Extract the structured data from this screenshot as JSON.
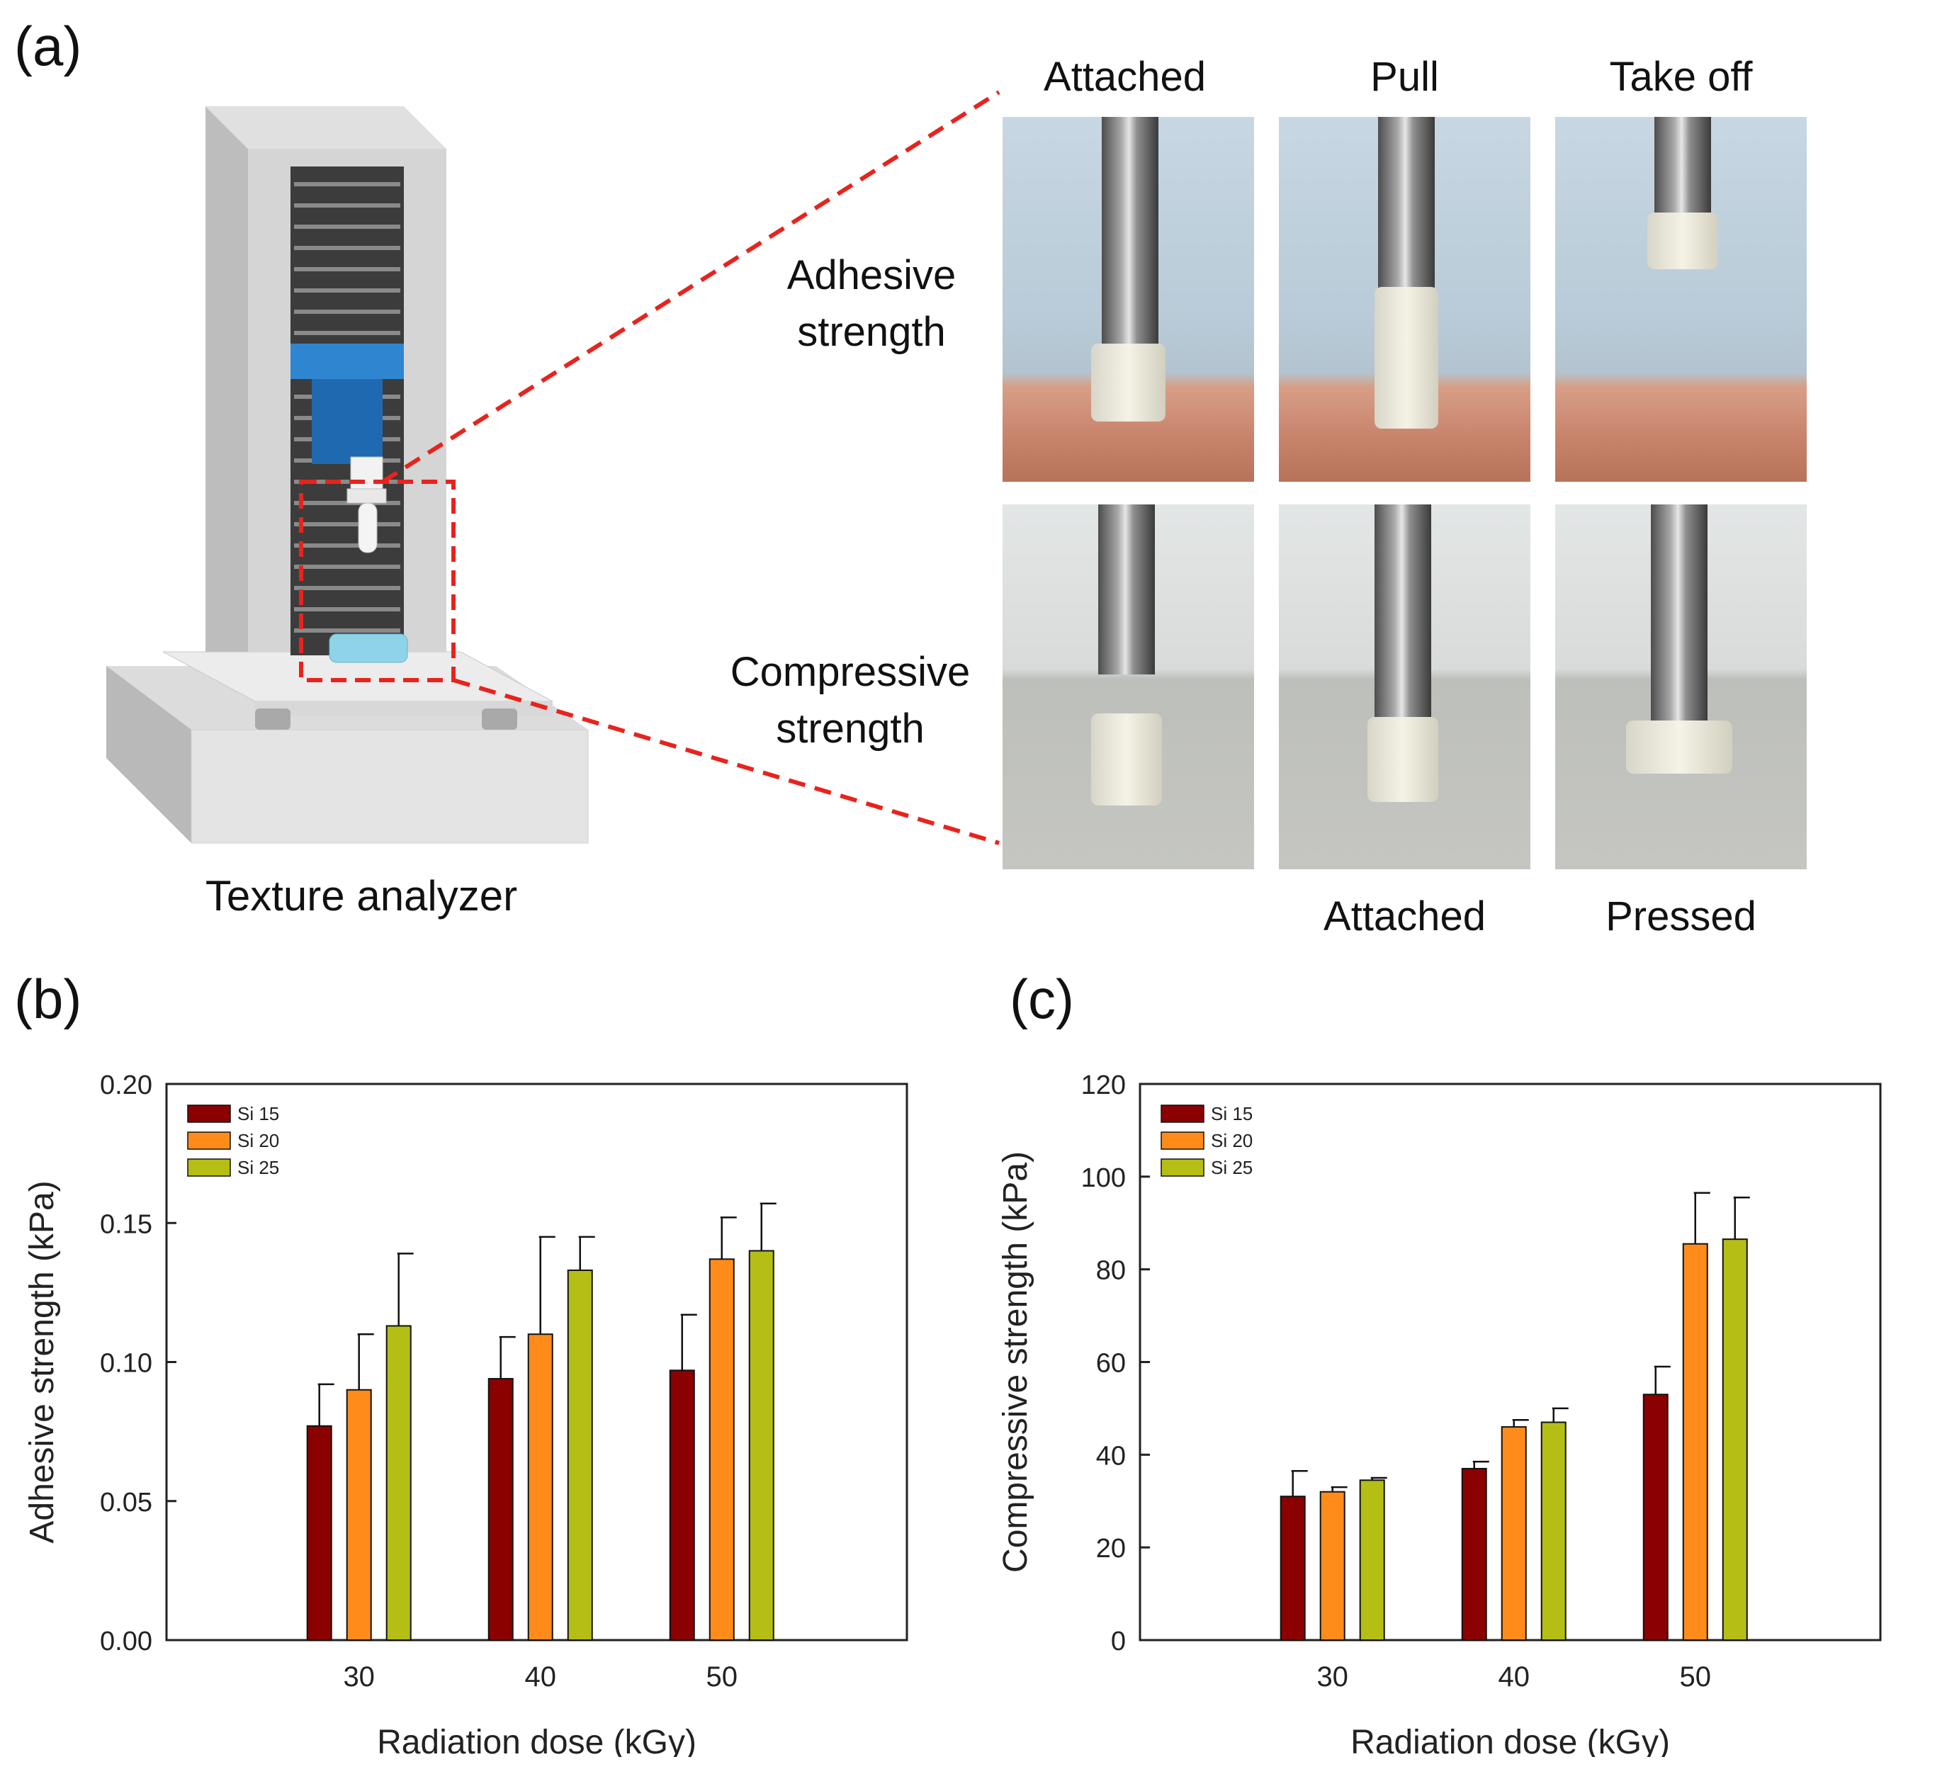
{
  "panel_a": {
    "letter": "(a)",
    "instrument_label": "Texture analyzer",
    "columns": [
      "Attached",
      "Pull",
      "Take off"
    ],
    "row_labels": [
      {
        "line1": "Adhesive",
        "line2": "strength"
      },
      {
        "line1": "Compressive",
        "line2": "strength"
      }
    ],
    "bottom_labels": [
      "Attached",
      "Pressed"
    ]
  },
  "colors": {
    "si15": "#8b0000",
    "si20": "#ff8c1a",
    "si25": "#b5be14",
    "dash": "#e8231e",
    "blue": "#2878bf"
  },
  "panel_b": {
    "letter": "(b)"
  },
  "panel_c": {
    "letter": "(c)"
  },
  "chart_data": [
    {
      "type": "bar",
      "panel": "(b)",
      "categories": [
        "30",
        "40",
        "50"
      ],
      "xlabel": "Radiation dose (kGy)",
      "ylabel": "Adhesive strength (kPa)",
      "ylim": [
        0,
        0.2
      ],
      "yticks": [
        "0.00",
        "0.05",
        "0.10",
        "0.15",
        "0.20"
      ],
      "legend": "top-left",
      "series": [
        {
          "name": "Si 15",
          "values": [
            0.077,
            0.094,
            0.097
          ],
          "errors": [
            0.015,
            0.015,
            0.02
          ]
        },
        {
          "name": "Si 20",
          "values": [
            0.09,
            0.11,
            0.137
          ],
          "errors": [
            0.02,
            0.035,
            0.015
          ]
        },
        {
          "name": "Si 25",
          "values": [
            0.113,
            0.133,
            0.14
          ],
          "errors": [
            0.026,
            0.012,
            0.017
          ]
        }
      ]
    },
    {
      "type": "bar",
      "panel": "(c)",
      "categories": [
        "30",
        "40",
        "50"
      ],
      "xlabel": "Radiation dose (kGy)",
      "ylabel": "Compressive strength (kPa)",
      "ylim": [
        0,
        120
      ],
      "yticks": [
        "0",
        "20",
        "40",
        "60",
        "80",
        "100",
        "120"
      ],
      "legend": "top-left",
      "series": [
        {
          "name": "Si 15",
          "values": [
            31,
            37,
            53
          ],
          "errors": [
            5.5,
            1.5,
            6
          ]
        },
        {
          "name": "Si 20",
          "values": [
            32,
            46,
            85.5
          ],
          "errors": [
            1,
            1.5,
            11
          ]
        },
        {
          "name": "Si 25",
          "values": [
            34.5,
            47,
            86.5
          ],
          "errors": [
            0.5,
            3,
            9
          ]
        }
      ]
    }
  ]
}
